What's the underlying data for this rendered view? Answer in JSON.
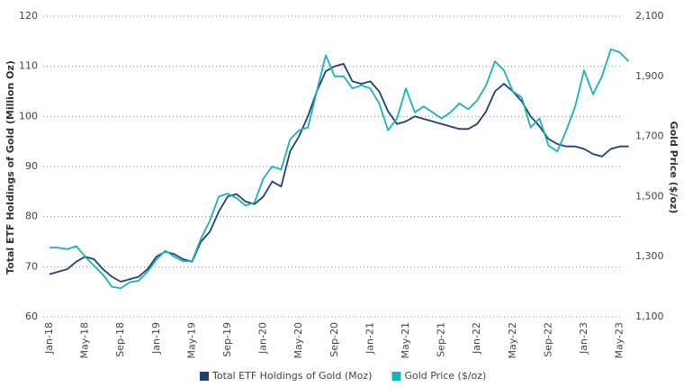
{
  "chart_data": {
    "type": "line",
    "y_label": "Total ETF Holdings of Gold (Million Oz)",
    "y2_label": "Gold Price ($/oz)",
    "categories": [
      "Jan-18",
      null,
      null,
      null,
      "May-18",
      null,
      null,
      null,
      "Sep-18",
      null,
      null,
      null,
      "Jan-19",
      null,
      null,
      null,
      "May-19",
      null,
      null,
      null,
      "Sep-19",
      null,
      null,
      null,
      "Jan-20",
      null,
      null,
      null,
      "May-20",
      null,
      null,
      null,
      "Sep-20",
      null,
      null,
      null,
      "Jan-21",
      null,
      null,
      null,
      "May-21",
      null,
      null,
      null,
      "Sep-21",
      null,
      null,
      null,
      "Jan-22",
      null,
      null,
      null,
      "May-22",
      null,
      null,
      null,
      "Sep-22",
      null,
      null,
      null,
      "Jan-23",
      null,
      null,
      null,
      "May-23",
      null
    ],
    "series": [
      {
        "name": "Total ETF Holdings of Gold (Moz)",
        "color": "#1f3f7a",
        "axis": "y",
        "values": [
          68.5,
          69,
          69.5,
          71,
          72,
          71.5,
          69.5,
          68,
          67,
          67.5,
          68,
          69.5,
          72,
          73,
          72.5,
          71.5,
          71,
          75,
          77,
          81,
          84,
          84.5,
          83,
          82.5,
          84,
          87,
          86,
          93,
          96,
          100,
          105,
          109,
          110,
          110.5,
          107,
          106.5,
          107,
          105,
          101,
          98.5,
          99,
          100,
          99.5,
          99,
          98.5,
          98,
          97.5,
          97.5,
          98.5,
          101,
          105,
          106.5,
          105,
          103,
          100,
          98,
          95.5,
          94.5,
          94,
          94,
          93.5,
          92.5,
          92,
          93.5,
          94,
          94
        ]
      },
      {
        "name": "Gold Price ($/oz)",
        "color": "#17b3b9",
        "axis": "y2",
        "values": [
          1330,
          1330,
          1325,
          1335,
          1300,
          1270,
          1240,
          1200,
          1195,
          1215,
          1220,
          1250,
          1290,
          1320,
          1300,
          1285,
          1285,
          1360,
          1420,
          1500,
          1510,
          1495,
          1470,
          1480,
          1560,
          1600,
          1590,
          1690,
          1720,
          1730,
          1850,
          1970,
          1900,
          1900,
          1860,
          1870,
          1860,
          1810,
          1720,
          1760,
          1860,
          1780,
          1800,
          1780,
          1760,
          1780,
          1810,
          1790,
          1820,
          1870,
          1950,
          1920,
          1850,
          1830,
          1730,
          1760,
          1670,
          1650,
          1720,
          1800,
          1920,
          1840,
          1900,
          1990,
          1980,
          1950
        ]
      }
    ],
    "ylim": [
      60,
      120
    ],
    "yticks": [
      60,
      70,
      80,
      90,
      100,
      110,
      120
    ],
    "y2lim": [
      1100,
      2100
    ],
    "y2ticks": [
      {
        "value": 1100,
        "label": "1,100"
      },
      {
        "value": 1300,
        "label": "1,300"
      },
      {
        "value": 1500,
        "label": "1,500"
      },
      {
        "value": 1700,
        "label": "1,700"
      },
      {
        "value": 1900,
        "label": "1,900"
      },
      {
        "value": 2100,
        "label": "2,100"
      }
    ],
    "grid": true,
    "legend": "bottom"
  }
}
